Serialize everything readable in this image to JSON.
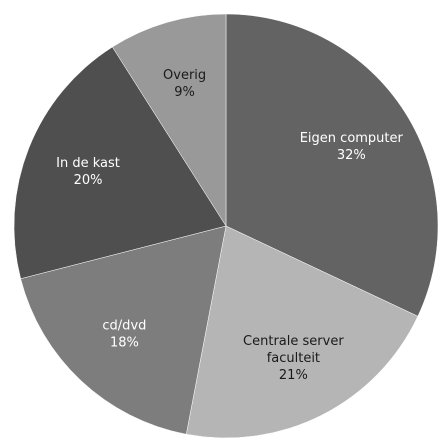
{
  "chart_data": {
    "type": "pie",
    "title": "",
    "start_angle_deg": 0,
    "direction": "clockwise",
    "slices": [
      {
        "label_lines": [
          "Eigen computer"
        ],
        "value": 32,
        "value_label": "32%",
        "color": "#636363",
        "text_color": "#ffffff"
      },
      {
        "label_lines": [
          "Centrale server",
          "faculteit"
        ],
        "value": 21,
        "value_label": "21%",
        "color": "#b5b5b5",
        "text_color": "#1a1a1a"
      },
      {
        "label_lines": [
          "cd/dvd"
        ],
        "value": 18,
        "value_label": "18%",
        "color": "#7d7d7d",
        "text_color": "#ffffff"
      },
      {
        "label_lines": [
          "In de kast"
        ],
        "value": 20,
        "value_label": "20%",
        "color": "#4f4f4f",
        "text_color": "#ffffff"
      },
      {
        "label_lines": [
          "Overig"
        ],
        "value": 9,
        "value_label": "9%",
        "color": "#999999",
        "text_color": "#1a1a1a"
      }
    ]
  }
}
